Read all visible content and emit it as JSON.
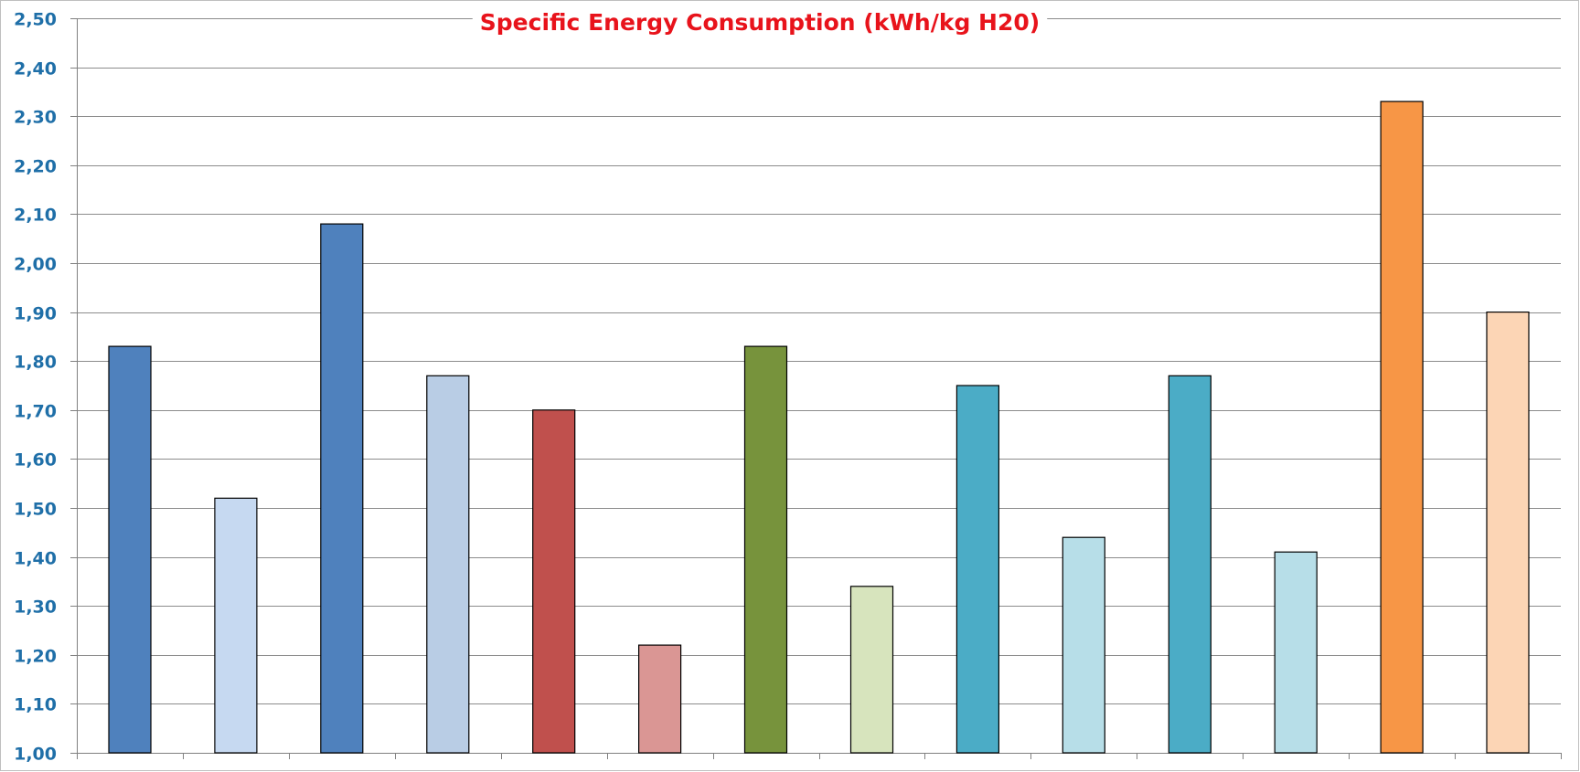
{
  "chart_data": {
    "type": "bar",
    "title": "Specific Energy Consumption (kWh/kg H20)",
    "xlabel": "",
    "ylabel": "",
    "ylim": [
      1.0,
      2.5
    ],
    "yticks": [
      1.0,
      1.1,
      1.2,
      1.3,
      1.4,
      1.5,
      1.6,
      1.7,
      1.8,
      1.9,
      2.0,
      2.1,
      2.2,
      2.3,
      2.4,
      2.5
    ],
    "ytick_labels": [
      "1,00",
      "1,10",
      "1,20",
      "1,30",
      "1,40",
      "1,50",
      "1,60",
      "1,70",
      "1,80",
      "1,90",
      "2,00",
      "2,10",
      "2,20",
      "2,30",
      "2,40",
      "2,50"
    ],
    "grid": true,
    "legend": "none",
    "categories": [
      "",
      "",
      "",
      "",
      "",
      "",
      "",
      "",
      "",
      "",
      "",
      "",
      "",
      ""
    ],
    "values": [
      1.83,
      1.52,
      2.08,
      1.77,
      1.7,
      1.22,
      1.83,
      1.34,
      1.75,
      1.44,
      1.77,
      1.41,
      2.33,
      1.9
    ],
    "colors": [
      "#4F81BD",
      "#C6D9F1",
      "#4F81BD",
      "#B9CDE5",
      "#C0504D",
      "#DA9694",
      "#77933C",
      "#D7E4BD",
      "#4BACC6",
      "#B7DEE8",
      "#4BACC6",
      "#B7DEE8",
      "#F79646",
      "#FCD5B5"
    ]
  }
}
